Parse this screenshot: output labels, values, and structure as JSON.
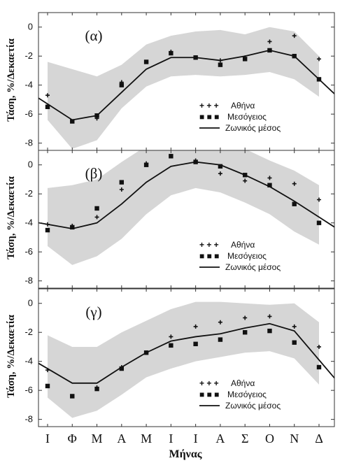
{
  "chart_data": {
    "type": "line",
    "categories": [
      "Ι",
      "Φ",
      "Μ",
      "Α",
      "Μ",
      "Ι",
      "Ι",
      "Α",
      "Σ",
      "Ο",
      "Ν",
      "Δ"
    ],
    "xlabel": "Μήνας",
    "ylabel": "Τάση, ",
    "ylabel_unit": "%/Δεκαετία",
    "ylim": [
      -8.5,
      1
    ],
    "yticks": [
      "0",
      "-2",
      "-4",
      "-6",
      "-8"
    ],
    "legend": {
      "athens": "Αθήνα",
      "med": "Μεσόγειος",
      "zonal": "Ζωνικός μέσος"
    },
    "legend_symbols": {
      "athens": "+ + +",
      "med": "■ ■ ■"
    },
    "panels": [
      {
        "label": "(α)",
        "series": [
          {
            "name": "Αθήνα",
            "values": [
              -4.7,
              -6.5,
              -6.3,
              -3.8,
              -2.4,
              -1.7,
              -2.1,
              -2.3,
              -2.1,
              -1.0,
              -0.6,
              -2.2
            ]
          },
          {
            "name": "Μεσόγειος",
            "values": [
              -5.5,
              -6.5,
              -6.1,
              -4.0,
              -2.4,
              -1.8,
              -2.1,
              -2.6,
              -2.2,
              -1.6,
              -2.0,
              -3.6
            ]
          },
          {
            "name": "Ζωνικός μέσος",
            "values": [
              -5.3,
              -6.4,
              -6.1,
              -4.5,
              -2.9,
              -2.1,
              -2.1,
              -2.3,
              -2.0,
              -1.6,
              -2.0,
              -3.6
            ]
          },
          {
            "name": "band_upper",
            "values": [
              -2.4,
              -2.9,
              -3.4,
              -2.6,
              -1.2,
              -0.6,
              -0.3,
              -0.2,
              -0.5,
              0.0,
              -0.3,
              -2.0
            ]
          },
          {
            "name": "band_lower",
            "values": [
              -6.4,
              -8.4,
              -7.8,
              -5.6,
              -4.1,
              -3.4,
              -3.3,
              -3.4,
              -3.3,
              -3.1,
              -3.6,
              -4.8
            ]
          }
        ]
      },
      {
        "label": "(β)",
        "series": [
          {
            "name": "Αθήνα",
            "values": [
              -4.1,
              -4.2,
              -3.6,
              -1.7,
              0.1,
              0.6,
              0.3,
              -0.6,
              -1.1,
              -0.9,
              -1.3,
              -2.4
            ]
          },
          {
            "name": "Μεσόγειος",
            "values": [
              -4.5,
              -4.3,
              -3.0,
              -1.2,
              0.0,
              0.6,
              0.2,
              -0.1,
              -0.7,
              -1.4,
              -2.7,
              -4.0
            ]
          },
          {
            "name": "Ζωνικός μέσος",
            "values": [
              -4.1,
              -4.4,
              -4.0,
              -2.7,
              -1.2,
              -0.1,
              0.2,
              0.0,
              -0.7,
              -1.5,
              -2.5,
              -3.6
            ]
          },
          {
            "name": "band_upper",
            "values": [
              -1.6,
              -1.4,
              -1.0,
              0.2,
              1.3,
              1.8,
              1.8,
              1.6,
              1.1,
              0.3,
              -0.4,
              -1.4
            ]
          },
          {
            "name": "band_lower",
            "values": [
              -5.6,
              -6.9,
              -6.3,
              -5.1,
              -3.4,
              -2.1,
              -1.6,
              -1.9,
              -2.6,
              -3.4,
              -4.6,
              -5.5
            ]
          }
        ]
      },
      {
        "label": "(γ)",
        "series": [
          {
            "name": "Αθήνα",
            "values": [
              -4.6,
              -6.4,
              -5.8,
              -4.4,
              -3.4,
              -2.3,
              -1.6,
              -1.3,
              -1.0,
              -0.9,
              -1.6,
              -3.0
            ]
          },
          {
            "name": "Μεσόγειος",
            "values": [
              -5.7,
              -6.4,
              -5.9,
              -4.5,
              -3.4,
              -2.9,
              -2.8,
              -2.5,
              -2.0,
              -1.9,
              -2.7,
              -4.4
            ]
          },
          {
            "name": "Ζωνικός μέσος",
            "values": [
              -4.5,
              -5.5,
              -5.5,
              -4.4,
              -3.4,
              -2.6,
              -2.3,
              -2.1,
              -1.7,
              -1.4,
              -1.9,
              -3.9
            ]
          },
          {
            "name": "band_upper",
            "values": [
              -2.2,
              -3.0,
              -3.0,
              -2.0,
              -1.2,
              -0.4,
              0.1,
              0.1,
              0.0,
              -0.1,
              0.0,
              -1.3
            ]
          },
          {
            "name": "band_lower",
            "values": [
              -6.5,
              -7.9,
              -7.4,
              -6.3,
              -5.1,
              -4.5,
              -4.0,
              -3.7,
              -3.4,
              -3.3,
              -3.8,
              -5.6
            ]
          }
        ]
      }
    ]
  },
  "colors": {
    "band": "#d6d6d6",
    "line": "#111111",
    "frame": "#333333"
  }
}
